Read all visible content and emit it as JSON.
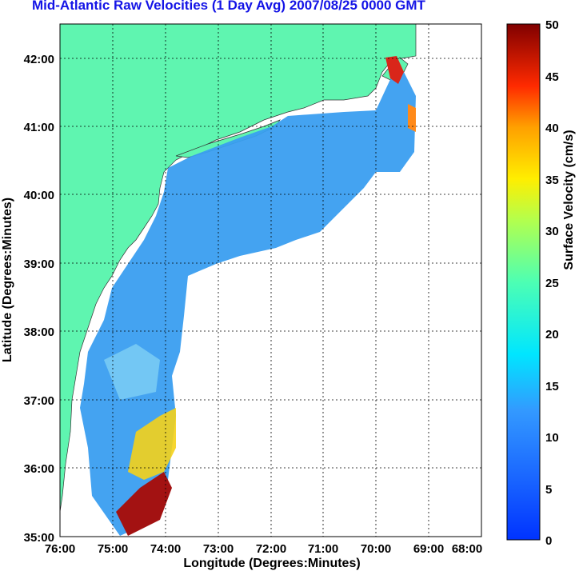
{
  "title": "Mid-Atlantic Raw Velocities (1 Day Avg) 2007/08/25 0000 GMT",
  "map": {
    "x_label": "Longitude (Degrees:Minutes)",
    "y_label": "Latitude (Degrees:Minutes)",
    "x_ticks": [
      "76:00",
      "75:00",
      "74:00",
      "73:00",
      "72:00",
      "71:00",
      "70:00",
      "69:00",
      "68:00"
    ],
    "y_ticks": [
      "42:00",
      "41:00",
      "40:00",
      "39:00",
      "38:00",
      "37:00",
      "36:00",
      "35:00"
    ],
    "lon_range": [
      -76,
      -68
    ],
    "lat_range": [
      35,
      42.5
    ],
    "land_color": "#5ff5b0",
    "grid": "dotted"
  },
  "colorbar": {
    "label": "Surface Velocity (cm/s)",
    "range": [
      0,
      50
    ],
    "ticks": [
      "0",
      "5",
      "10",
      "15",
      "20",
      "25",
      "30",
      "35",
      "40",
      "45",
      "50"
    ],
    "colormap": "jet"
  }
}
